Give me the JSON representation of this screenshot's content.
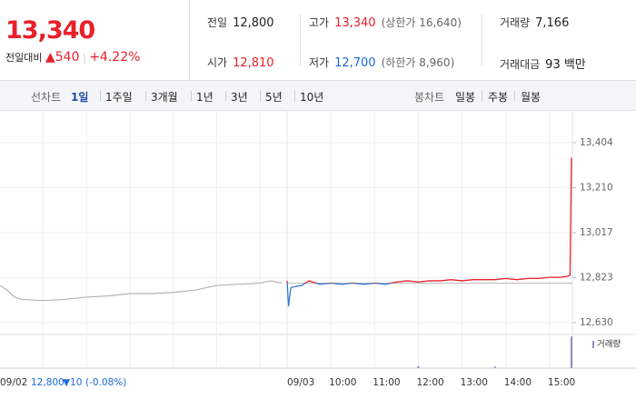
{
  "quote": {
    "price": "13,340",
    "change_label": "전일대비",
    "change": "▲540",
    "change_rate": "+4.22%"
  },
  "summary": [
    [
      {
        "label": "전일",
        "value": "12,800"
      },
      {
        "label": "고가",
        "value": "13,340",
        "note": "(상한가 16,640)",
        "color": "#e8202a"
      },
      {
        "label": "거래량",
        "value": "7,166"
      }
    ],
    [
      {
        "label": "시가",
        "value": "12,810",
        "color": "#e8202a"
      },
      {
        "label": "저가",
        "value": "12,700",
        "note": "(하한가 8,960)",
        "color": "#1d6ad8"
      },
      {
        "label": "거래대금",
        "value": "93 백만"
      }
    ]
  ],
  "tabs": {
    "line_label": "선차트",
    "line_options": [
      "1일",
      "1주일",
      "3개월",
      "1년",
      "3년",
      "5년",
      "10년"
    ],
    "selected": 0,
    "candle_label": "봉차트",
    "candle_options": [
      "일봉",
      "주봉",
      "월봉"
    ]
  },
  "chart_data": {
    "type": "line",
    "ylim": [
      12630,
      13404
    ],
    "yticks": [
      {
        "value": 13404,
        "label": "13,404"
      },
      {
        "value": 13210,
        "label": "13,210"
      },
      {
        "value": 13017,
        "label": "13,017"
      },
      {
        "value": 12823,
        "label": "12,823"
      },
      {
        "value": 12630,
        "label": "12,630"
      }
    ],
    "xlim": [
      0,
      390
    ],
    "day_labels": [
      "09/02",
      "09/03"
    ],
    "xticks": [
      {
        "value": 60,
        "label": "10:00"
      },
      {
        "value": 120,
        "label": "11:00"
      },
      {
        "value": 180,
        "label": "12:00"
      },
      {
        "value": 240,
        "label": "13:00"
      },
      {
        "value": 300,
        "label": "14:00"
      },
      {
        "value": 360,
        "label": "15:00"
      }
    ],
    "previous": {
      "color": "#b4b4b4",
      "x": [
        0,
        10,
        20,
        30,
        60,
        90,
        120,
        150,
        180,
        210,
        240,
        270,
        300,
        330,
        360,
        375,
        390
      ],
      "values": [
        12790,
        12770,
        12740,
        12730,
        12725,
        12730,
        12740,
        12745,
        12755,
        12755,
        12760,
        12770,
        12790,
        12795,
        12800,
        12810,
        12800
      ]
    },
    "today": {
      "up_color": "#e8202a",
      "down_color": "#3a7ad8",
      "x": [
        0,
        2,
        5,
        10,
        20,
        30,
        45,
        60,
        75,
        90,
        105,
        120,
        135,
        150,
        165,
        180,
        195,
        210,
        225,
        240,
        255,
        270,
        285,
        300,
        315,
        330,
        345,
        360,
        375,
        385,
        388,
        390
      ],
      "values": [
        12810,
        12700,
        12780,
        12785,
        12790,
        12810,
        12795,
        12800,
        12795,
        12800,
        12795,
        12800,
        12795,
        12805,
        12810,
        12805,
        12810,
        12810,
        12815,
        12810,
        12815,
        12815,
        12815,
        12820,
        12815,
        12820,
        12820,
        12825,
        12825,
        12830,
        12835,
        13340
      ]
    },
    "volume": {
      "name": "거래량",
      "color": "#9a86c8",
      "x": [
        180,
        285,
        390
      ],
      "values": [
        200,
        150,
        3000
      ],
      "ylim": [
        0,
        3200
      ]
    },
    "previous_close": {
      "value": 12800,
      "label": "12,800"
    },
    "previous_change": "▼10",
    "previous_rate": "(-0.08%)"
  }
}
